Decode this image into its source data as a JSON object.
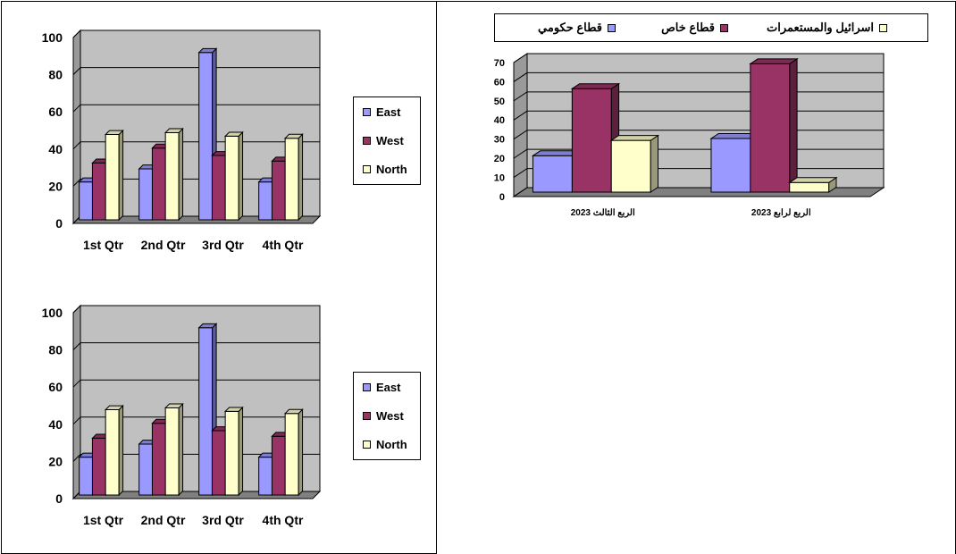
{
  "chart_data": [
    {
      "type": "bar",
      "categories": [
        "1st Qtr",
        "2nd Qtr",
        "3rd Qtr",
        "4th Qtr"
      ],
      "series": [
        {
          "name": "East",
          "values": [
            20.4,
            27.4,
            90,
            20.4
          ],
          "color": "#9999ff"
        },
        {
          "name": "West",
          "values": [
            30.6,
            38.6,
            34.6,
            31.6
          ],
          "color": "#993366"
        },
        {
          "name": "North",
          "values": [
            45.9,
            46.9,
            45,
            43.9
          ],
          "color": "#ffffcc"
        }
      ],
      "yticks": [
        "0",
        "20",
        "40",
        "60",
        "80",
        "100"
      ],
      "ylim": [
        0,
        100
      ],
      "grid": true,
      "legend_position": "right",
      "style": "3d-clustered-column"
    },
    {
      "type": "bar",
      "categories": [
        "1st Qtr",
        "2nd Qtr",
        "3rd Qtr",
        "4th Qtr"
      ],
      "series": [
        {
          "name": "East",
          "values": [
            20.4,
            27.4,
            90,
            20.4
          ],
          "color": "#9999ff"
        },
        {
          "name": "West",
          "values": [
            30.6,
            38.6,
            34.6,
            31.6
          ],
          "color": "#993366"
        },
        {
          "name": "North",
          "values": [
            45.9,
            46.9,
            45,
            43.9
          ],
          "color": "#ffffcc"
        }
      ],
      "yticks": [
        "0",
        "20",
        "40",
        "60",
        "80",
        "100"
      ],
      "ylim": [
        0,
        100
      ],
      "grid": true,
      "legend_position": "right",
      "style": "3d-clustered-column"
    },
    {
      "type": "bar",
      "categories": [
        "الربع الثالث 2023",
        "الربع لرابع 2023"
      ],
      "series": [
        {
          "name": "قطاع حكومي",
          "values": [
            19,
            28
          ],
          "color": "#9999ff"
        },
        {
          "name": "قطاع خاص",
          "values": [
            54,
            67
          ],
          "color": "#993366"
        },
        {
          "name": "اسرائيل والمستعمرات",
          "values": [
            27,
            5
          ],
          "color": "#ffffcc"
        }
      ],
      "yticks": [
        "0",
        "10",
        "20",
        "30",
        "40",
        "50",
        "60",
        "70"
      ],
      "ylim": [
        0,
        70
      ],
      "grid": true,
      "legend_position": "top",
      "style": "3d-clustered-column"
    }
  ]
}
